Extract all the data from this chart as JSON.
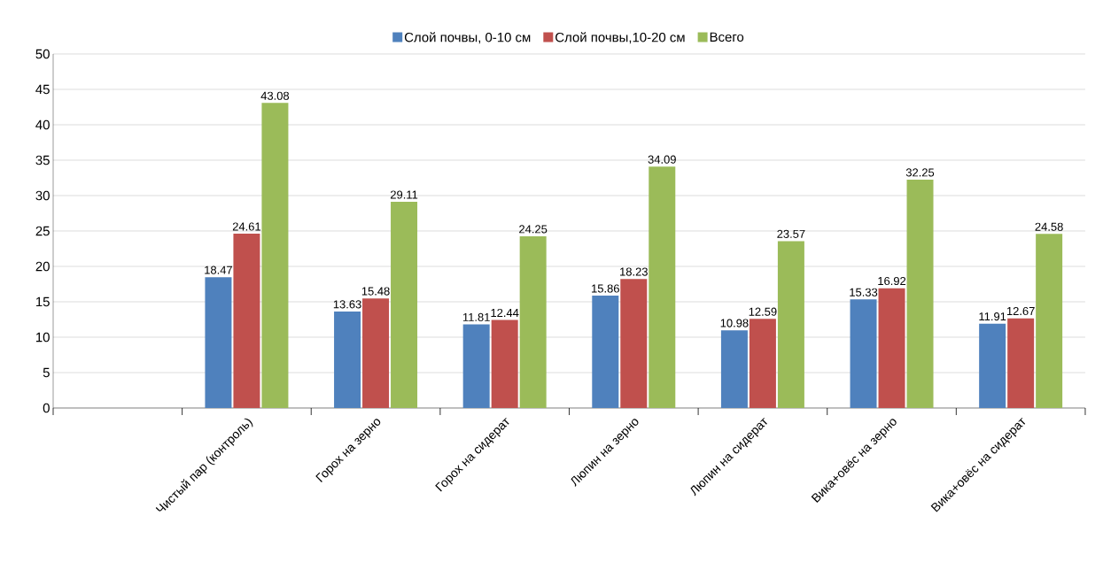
{
  "chart_data": {
    "type": "bar",
    "categories": [
      null,
      "Чистый пар (контроль)",
      "Горох на зерно",
      "Горох на сидерат",
      "Люпин на зерно",
      "Люпин на сидерат",
      "Вика+овёс на зерно",
      "Вика+овёс на сидерат"
    ],
    "series": [
      {
        "name": "Слой почвы, 0-10 см",
        "color": "#4f81bd",
        "values": [
          null,
          18.47,
          13.63,
          11.81,
          15.86,
          10.98,
          15.33,
          11.91
        ]
      },
      {
        "name": "Слой почвы,10-20 см",
        "color": "#c0504d",
        "values": [
          null,
          24.61,
          15.48,
          12.44,
          18.23,
          12.59,
          16.92,
          12.67
        ]
      },
      {
        "name": "Всего",
        "color": "#9bbb59",
        "values": [
          null,
          43.08,
          29.11,
          24.25,
          34.09,
          23.57,
          32.25,
          24.58
        ]
      }
    ],
    "ylim": [
      0,
      50
    ],
    "yticks": [
      0,
      5,
      10,
      15,
      20,
      25,
      30,
      35,
      40,
      45,
      50
    ],
    "grid": "y",
    "legend": "top",
    "data_labels": true
  }
}
